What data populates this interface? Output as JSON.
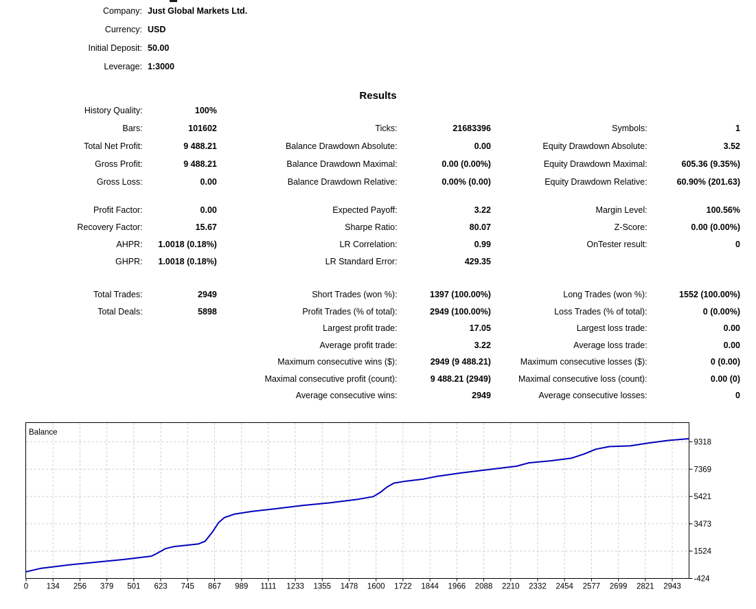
{
  "settings": {
    "rows": [
      {
        "label": "Company:",
        "value": "Just Global Markets Ltd."
      },
      {
        "label": "Currency:",
        "value": "USD"
      },
      {
        "label": "Initial Deposit:",
        "value": "50.00"
      },
      {
        "label": "Leverage:",
        "value": "1:3000"
      }
    ]
  },
  "results": {
    "title": "Results",
    "groups": [
      [
        [
          "History Quality:",
          "100%",
          "",
          "",
          "",
          ""
        ],
        [
          "Bars:",
          "101602",
          "Ticks:",
          "21683396",
          "Symbols:",
          "1"
        ],
        [
          "Total Net Profit:",
          "9 488.21",
          "Balance Drawdown Absolute:",
          "0.00",
          "Equity Drawdown Absolute:",
          "3.52"
        ],
        [
          "Gross Profit:",
          "9 488.21",
          "Balance Drawdown Maximal:",
          "0.00 (0.00%)",
          "Equity Drawdown Maximal:",
          "605.36 (9.35%)"
        ],
        [
          "Gross Loss:",
          "0.00",
          "Balance Drawdown Relative:",
          "0.00% (0.00)",
          "Equity Drawdown Relative:",
          "60.90% (201.63)"
        ]
      ],
      [
        [
          "Profit Factor:",
          "0.00",
          "Expected Payoff:",
          "3.22",
          "Margin Level:",
          "100.56%"
        ],
        [
          "Recovery Factor:",
          "15.67",
          "Sharpe Ratio:",
          "80.07",
          "Z-Score:",
          "0.00 (0.00%)"
        ],
        [
          "AHPR:",
          "1.0018 (0.18%)",
          "LR Correlation:",
          "0.99",
          "OnTester result:",
          "0"
        ],
        [
          "GHPR:",
          "1.0018 (0.18%)",
          "LR Standard Error:",
          "429.35",
          "",
          ""
        ]
      ],
      [
        [
          "Total Trades:",
          "2949",
          "Short Trades (won %):",
          "1397 (100.00%)",
          "Long Trades (won %):",
          "1552 (100.00%)"
        ],
        [
          "Total Deals:",
          "5898",
          "Profit Trades (% of total):",
          "2949 (100.00%)",
          "Loss Trades (% of total):",
          "0 (0.00%)"
        ],
        [
          "",
          "",
          "Largest profit trade:",
          "17.05",
          "Largest loss trade:",
          "0.00"
        ],
        [
          "",
          "",
          "Average profit trade:",
          "3.22",
          "Average loss trade:",
          "0.00"
        ],
        [
          "",
          "",
          "Maximum consecutive wins ($):",
          "2949 (9 488.21)",
          "Maximum consecutive losses ($):",
          "0 (0.00)"
        ],
        [
          "",
          "",
          "Maximal consecutive profit (count):",
          "9 488.21 (2949)",
          "Maximal consecutive loss (count):",
          "0.00 (0)"
        ],
        [
          "",
          "",
          "Average consecutive wins:",
          "2949",
          "Average consecutive losses:",
          "0"
        ]
      ]
    ]
  },
  "chart_data": {
    "type": "line",
    "title": "Balance",
    "line_color": "#0000BE",
    "grid_color": "#cccccc",
    "xlim": [
      0,
      2949
    ],
    "ylim": [
      -424,
      10690
    ],
    "xticks": [
      0,
      134,
      256,
      379,
      501,
      623,
      745,
      867,
      989,
      1111,
      1233,
      1355,
      1478,
      1600,
      1722,
      1844,
      1966,
      2088,
      2210,
      2332,
      2454,
      2577,
      2699,
      2821,
      2943
    ],
    "yticks": [
      9318,
      7369,
      5421,
      3473,
      1524,
      -424
    ],
    "legend_position": "top-left",
    "series": [
      {
        "name": "Balance",
        "points": [
          [
            0,
            50
          ],
          [
            67,
            299
          ],
          [
            190,
            541
          ],
          [
            313,
            734
          ],
          [
            435,
            926
          ],
          [
            558,
            1167
          ],
          [
            582,
            1360
          ],
          [
            619,
            1698
          ],
          [
            656,
            1843
          ],
          [
            711,
            1939
          ],
          [
            766,
            2036
          ],
          [
            797,
            2229
          ],
          [
            828,
            2856
          ],
          [
            858,
            3579
          ],
          [
            883,
            3917
          ],
          [
            926,
            4158
          ],
          [
            1002,
            4351
          ],
          [
            1110,
            4544
          ],
          [
            1232,
            4785
          ],
          [
            1355,
            4978
          ],
          [
            1477,
            5219
          ],
          [
            1545,
            5412
          ],
          [
            1575,
            5701
          ],
          [
            1606,
            6087
          ],
          [
            1637,
            6377
          ],
          [
            1692,
            6521
          ],
          [
            1769,
            6666
          ],
          [
            1830,
            6859
          ],
          [
            1937,
            7100
          ],
          [
            2060,
            7341
          ],
          [
            2183,
            7582
          ],
          [
            2238,
            7823
          ],
          [
            2336,
            7968
          ],
          [
            2428,
            8161
          ],
          [
            2483,
            8450
          ],
          [
            2535,
            8788
          ],
          [
            2597,
            8981
          ],
          [
            2689,
            9029
          ],
          [
            2765,
            9222
          ],
          [
            2857,
            9415
          ],
          [
            2949,
            9538
          ]
        ]
      }
    ]
  }
}
